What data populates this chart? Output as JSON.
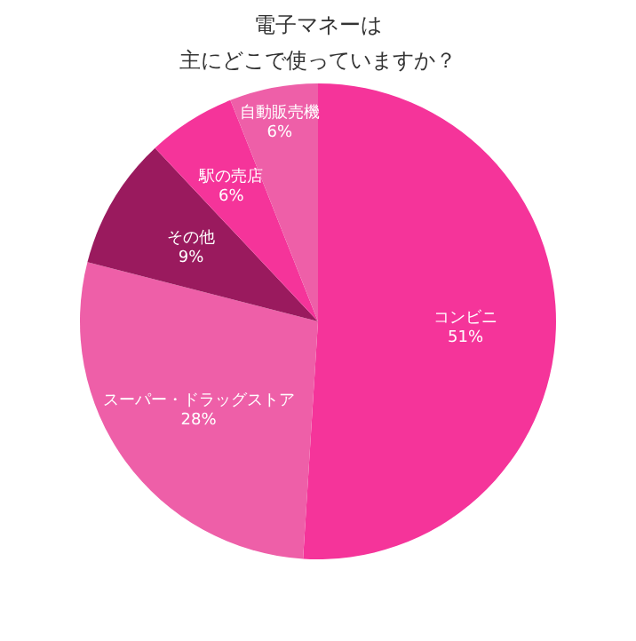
{
  "chart_data": {
    "type": "pie",
    "title": "電子マネーは",
    "subtitle": "主にどこで使っていますか？",
    "categories": [
      "コンビニ",
      "スーパー・ドラッグストア",
      "その他",
      "駅の売店",
      "自動販売機"
    ],
    "values": [
      51,
      28,
      9,
      6,
      6
    ],
    "value_labels": [
      "51%",
      "28%",
      "9%",
      "6%",
      "6%"
    ],
    "colors": [
      "#f5349a",
      "#ee5fa8",
      "#9a1a5e",
      "#f5349a",
      "#ee5fa8"
    ]
  }
}
